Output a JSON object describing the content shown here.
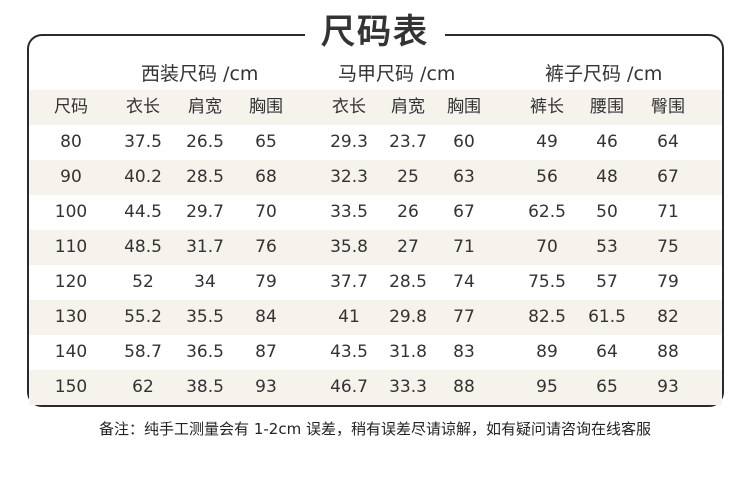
{
  "title": "尺码表",
  "groups": {
    "suit": "西装尺码 /cm",
    "vest": "马甲尺码 /cm",
    "pants": "裤子尺码 /cm"
  },
  "columns": [
    "尺码",
    "衣长",
    "肩宽",
    "胸围",
    "衣长",
    "肩宽",
    "胸围",
    "裤长",
    "腰围",
    "臀围"
  ],
  "rows": [
    [
      "80",
      "37.5",
      "26.5",
      "65",
      "29.3",
      "23.7",
      "60",
      "49",
      "46",
      "64"
    ],
    [
      "90",
      "40.2",
      "28.5",
      "68",
      "32.3",
      "25",
      "63",
      "56",
      "48",
      "67"
    ],
    [
      "100",
      "44.5",
      "29.7",
      "70",
      "33.5",
      "26",
      "67",
      "62.5",
      "50",
      "71"
    ],
    [
      "110",
      "48.5",
      "31.7",
      "76",
      "35.8",
      "27",
      "71",
      "70",
      "53",
      "75"
    ],
    [
      "120",
      "52",
      "34",
      "79",
      "37.7",
      "28.5",
      "74",
      "75.5",
      "57",
      "79"
    ],
    [
      "130",
      "55.2",
      "35.5",
      "84",
      "41",
      "29.8",
      "77",
      "82.5",
      "61.5",
      "82"
    ],
    [
      "140",
      "58.7",
      "36.5",
      "87",
      "43.5",
      "31.8",
      "83",
      "89",
      "64",
      "88"
    ],
    [
      "150",
      "62",
      "38.5",
      "93",
      "46.7",
      "33.3",
      "88",
      "95",
      "65",
      "93"
    ]
  ],
  "note": "备注：纯手工测量会有 1-2cm 误差，稍有误差尽请谅解，如有疑问请咨询在线客服",
  "colors": {
    "row_shade": "#f6f2ec",
    "border": "#2a2a2a",
    "text": "#333333"
  }
}
